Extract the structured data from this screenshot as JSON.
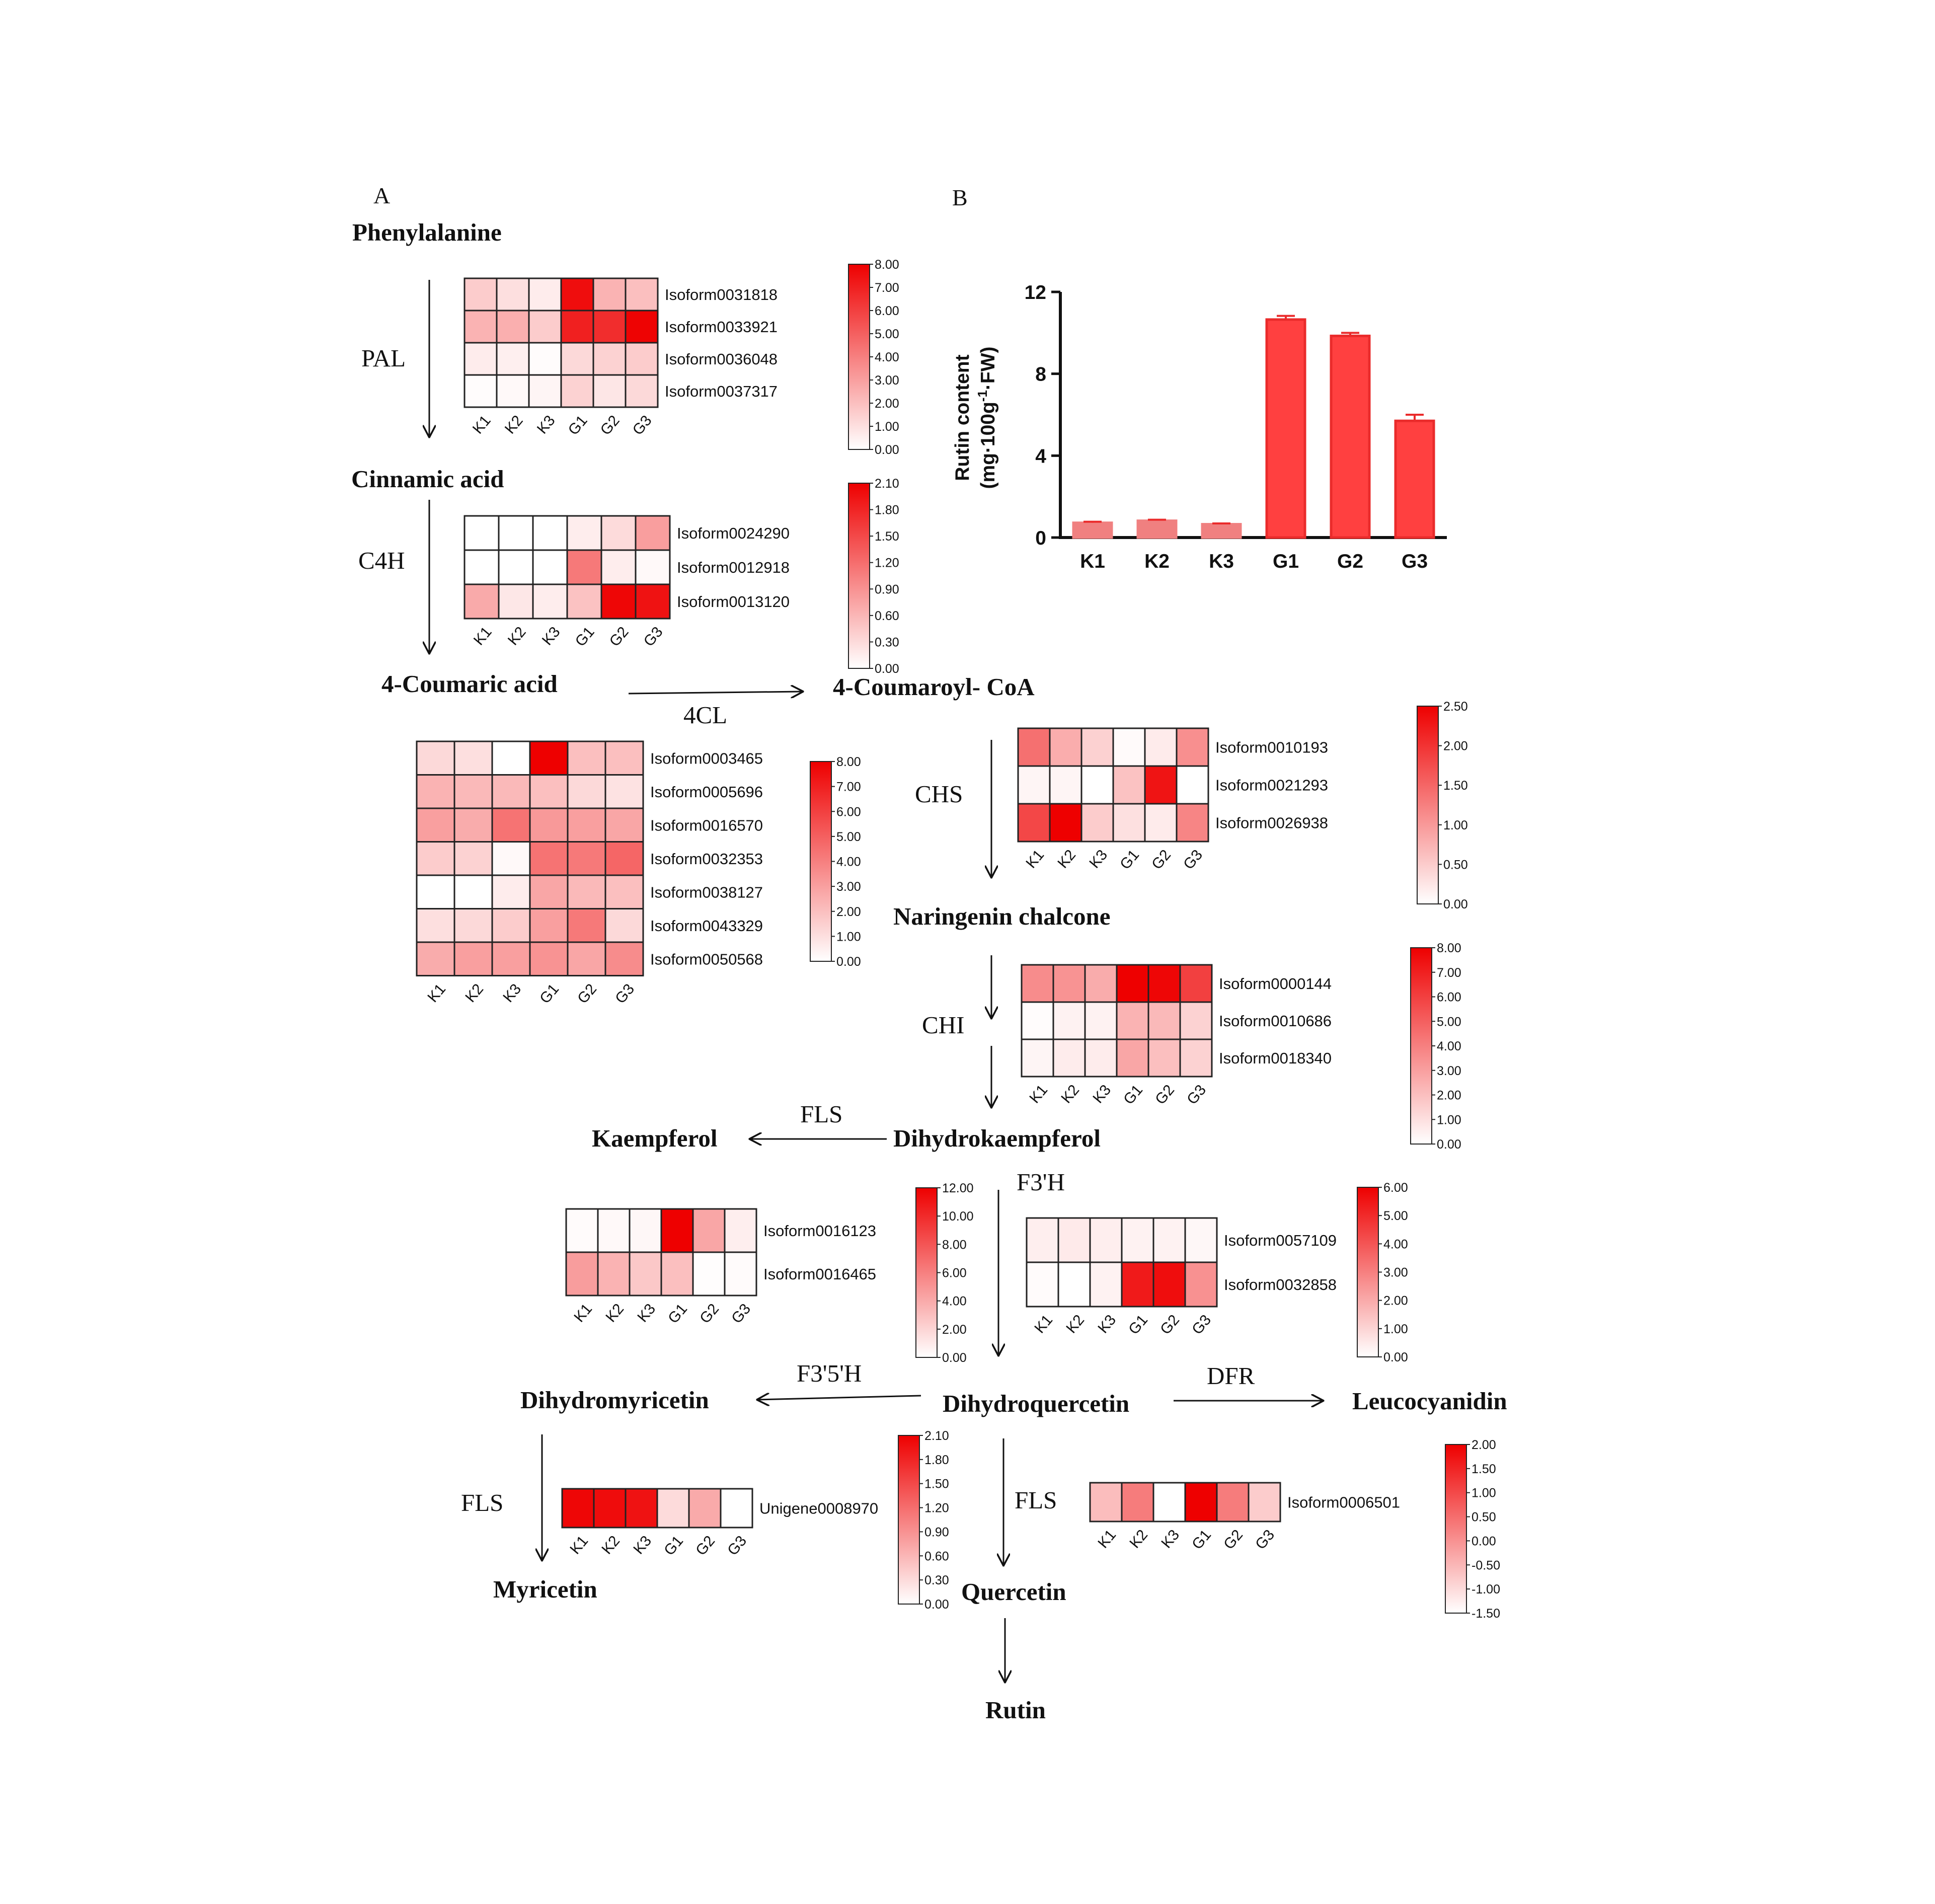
{
  "panels": {
    "a": "A",
    "b": "B"
  },
  "compounds": {
    "phenylalanine": "Phenylalanine",
    "cinnamic_acid": "Cinnamic acid",
    "coumaric_acid": "4-Coumaric acid",
    "coumaroyl_coa": "4-Coumaroyl- CoA",
    "naringenin_chalcone": "Naringenin chalcone",
    "kaempferol": "Kaempferol",
    "dihydrokaempferol": "Dihydrokaempferol",
    "dihydromyricetin": "Dihydromyricetin",
    "dihydroquercetin": "Dihydroquercetin",
    "leucocyanidin": "Leucocyanidin",
    "myricetin": "Myricetin",
    "quercetin": "Quercetin",
    "rutin": "Rutin"
  },
  "enzymes": {
    "pal": "PAL",
    "c4h": "C4H",
    "fourcl": "4CL",
    "chs": "CHS",
    "chi": "CHI",
    "fls_kaempferol": "FLS",
    "f3h": "F3'H",
    "f35h": "F3'5'H",
    "dfr": "DFR",
    "fls_myricetin": "FLS",
    "fls_quercetin": "FLS"
  },
  "colors": {
    "heat_low": "#ffffff",
    "heat_high": "#ee0000",
    "bar_fill": "#ff4040",
    "bar_edge": "#ea2b2b",
    "bar_low": "#f08080"
  },
  "heatmaps": [
    {
      "id": "pal",
      "samples": [
        "K1",
        "K2",
        "K3",
        "G1",
        "G2",
        "G3"
      ],
      "scale": [
        "8.00",
        "7.00",
        "6.00",
        "5.00",
        "4.00",
        "3.00",
        "2.00",
        "1.00",
        "0.00"
      ],
      "rows": [
        {
          "label": "Isoform0031818",
          "values": [
            1.6,
            1.0,
            0.6,
            7.6,
            2.4,
            2.0
          ]
        },
        {
          "label": "Isoform0033921",
          "values": [
            2.4,
            2.5,
            1.6,
            7.0,
            6.6,
            7.9
          ]
        },
        {
          "label": "Isoform0036048",
          "values": [
            0.6,
            0.5,
            0.1,
            1.2,
            1.4,
            1.6
          ]
        },
        {
          "label": "Isoform0037317",
          "values": [
            0.1,
            0.2,
            0.3,
            1.4,
            0.8,
            1.2
          ]
        }
      ]
    },
    {
      "id": "c4h",
      "samples": [
        "K1",
        "K2",
        "K3",
        "G1",
        "G2",
        "G3"
      ],
      "scale": [
        "2.10",
        "1.80",
        "1.50",
        "1.20",
        "0.90",
        "0.60",
        "0.30",
        "0.00"
      ],
      "rows": [
        {
          "label": "Isoform0024290",
          "values": [
            0.0,
            0.0,
            0.0,
            0.15,
            0.3,
            0.8
          ]
        },
        {
          "label": "Isoform0012918",
          "values": [
            0.0,
            0.0,
            0.0,
            1.1,
            0.15,
            0.05
          ]
        },
        {
          "label": "Isoform0013120",
          "values": [
            0.7,
            0.2,
            0.15,
            0.5,
            2.05,
            1.95
          ]
        }
      ]
    },
    {
      "id": "fourcl",
      "samples": [
        "K1",
        "K2",
        "K3",
        "G1",
        "G2",
        "G3"
      ],
      "scale": [
        "8.00",
        "7.00",
        "6.00",
        "5.00",
        "4.00",
        "3.00",
        "2.00",
        "1.00",
        "0.00"
      ],
      "rows": [
        {
          "label": "Isoform0003465",
          "values": [
            1.2,
            1.0,
            0.0,
            8.0,
            2.0,
            2.0
          ]
        },
        {
          "label": "Isoform0005696",
          "values": [
            2.4,
            2.2,
            2.2,
            2.0,
            1.2,
            0.9
          ]
        },
        {
          "label": "Isoform0016570",
          "values": [
            3.0,
            2.6,
            4.4,
            3.2,
            3.0,
            2.8
          ]
        },
        {
          "label": "Isoform0032353",
          "values": [
            1.6,
            1.4,
            0.2,
            4.4,
            4.2,
            4.8
          ]
        },
        {
          "label": "Isoform0038127",
          "values": [
            0.0,
            0.0,
            0.6,
            2.8,
            2.2,
            2.0
          ]
        },
        {
          "label": "Isoform0043329",
          "values": [
            1.0,
            1.2,
            1.6,
            3.0,
            4.2,
            1.2
          ]
        },
        {
          "label": "Isoform0050568",
          "values": [
            2.6,
            3.0,
            3.0,
            3.4,
            2.8,
            3.6
          ]
        }
      ]
    },
    {
      "id": "chs",
      "samples": [
        "K1",
        "K2",
        "K3",
        "G1",
        "G2",
        "G3"
      ],
      "scale": [
        "2.50",
        "2.00",
        "1.50",
        "1.00",
        "0.50",
        "0.00"
      ],
      "rows": [
        {
          "label": "Isoform0010193",
          "values": [
            1.4,
            0.8,
            0.45,
            0.05,
            0.2,
            1.1
          ]
        },
        {
          "label": "Isoform0021293",
          "values": [
            0.1,
            0.1,
            0.0,
            0.6,
            2.3,
            0.0
          ]
        },
        {
          "label": "Isoform0026938",
          "values": [
            1.8,
            2.5,
            0.5,
            0.3,
            0.2,
            1.2
          ]
        }
      ]
    },
    {
      "id": "chi",
      "samples": [
        "K1",
        "K2",
        "K3",
        "G1",
        "G2",
        "G3"
      ],
      "scale": [
        "8.00",
        "7.00",
        "6.00",
        "5.00",
        "4.00",
        "3.00",
        "2.00",
        "1.00",
        "0.00"
      ],
      "rows": [
        {
          "label": "Isoform0000144",
          "values": [
            3.6,
            3.4,
            2.6,
            8.0,
            7.8,
            6.0
          ]
        },
        {
          "label": "Isoform0010686",
          "values": [
            0.1,
            0.4,
            0.4,
            2.4,
            2.2,
            1.4
          ]
        },
        {
          "label": "Isoform0018340",
          "values": [
            0.3,
            0.6,
            0.6,
            2.8,
            2.0,
            1.4
          ]
        }
      ]
    },
    {
      "id": "fls_kaempferol",
      "samples": [
        "K1",
        "K2",
        "K3",
        "G1",
        "G2",
        "G3"
      ],
      "scale": [
        "12.00",
        "10.00",
        "8.00",
        "6.00",
        "4.00",
        "2.00",
        "0.00"
      ],
      "rows": [
        {
          "label": "Isoform0016123",
          "values": [
            0.2,
            0.3,
            0.4,
            12.0,
            4.2,
            0.8
          ]
        },
        {
          "label": "Isoform0016465",
          "values": [
            4.6,
            3.6,
            2.6,
            3.0,
            0.1,
            0.2
          ]
        }
      ]
    },
    {
      "id": "f3h",
      "samples": [
        "K1",
        "K2",
        "K3",
        "G1",
        "G2",
        "G3"
      ],
      "scale": [
        "6.00",
        "5.00",
        "4.00",
        "3.00",
        "2.00",
        "1.00",
        "0.00"
      ],
      "rows": [
        {
          "label": "Isoform0057109",
          "values": [
            0.4,
            0.5,
            0.4,
            0.3,
            0.3,
            0.2
          ]
        },
        {
          "label": "Isoform0032858",
          "values": [
            0.1,
            0.0,
            0.3,
            5.4,
            5.7,
            2.6
          ]
        }
      ]
    },
    {
      "id": "fls_myricetin",
      "samples": [
        "K1",
        "K2",
        "K3",
        "G1",
        "G2",
        "G3"
      ],
      "scale": [
        "2.10",
        "1.80",
        "1.50",
        "1.20",
        "0.90",
        "0.60",
        "0.30",
        "0.00"
      ],
      "rows": [
        {
          "label": "Unigene0008970",
          "values": [
            2.05,
            2.0,
            1.95,
            0.3,
            0.7,
            0.0
          ]
        }
      ]
    },
    {
      "id": "fls_quercetin",
      "samples": [
        "K1",
        "K2",
        "K3",
        "G1",
        "G2",
        "G3"
      ],
      "scale": [
        "2.00",
        "1.50",
        "1.00",
        "0.50",
        "0.00",
        "-0.50",
        "-1.00",
        "-1.50"
      ],
      "rows": [
        {
          "label": "Isoform0006501",
          "values": [
            -0.6,
            0.3,
            -1.5,
            2.0,
            0.3,
            -0.8
          ]
        }
      ]
    }
  ],
  "chart_data": {
    "type": "bar",
    "categories": [
      "K1",
      "K2",
      "K3",
      "G1",
      "G2",
      "G3"
    ],
    "values": [
      0.72,
      0.82,
      0.65,
      10.65,
      9.85,
      5.7
    ],
    "errors": [
      0.05,
      0.05,
      0.04,
      0.18,
      0.15,
      0.3
    ],
    "yticks": [
      "12",
      "8",
      "4",
      "0"
    ],
    "ylim": [
      0,
      12
    ],
    "ylabel_line1": "Rutin content",
    "ylabel_line2": "(mg·100g",
    "ylabel_sup": "-1",
    "ylabel_end": "·FW)",
    "grid": false
  }
}
